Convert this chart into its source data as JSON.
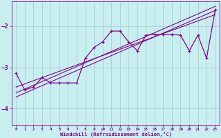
{
  "xlabel": "Windchill (Refroidissement éolien,°C)",
  "xlim": [
    -0.5,
    23.5
  ],
  "ylim": [
    -4.4,
    -1.4
  ],
  "yticks": [
    -4,
    -3,
    -2
  ],
  "xticks": [
    0,
    1,
    2,
    3,
    4,
    5,
    6,
    7,
    8,
    9,
    10,
    11,
    12,
    13,
    14,
    15,
    16,
    17,
    18,
    19,
    20,
    21,
    22,
    23
  ],
  "bg_color": "#c8eef0",
  "grid_color": "#9ecfcc",
  "line_color": "#880088",
  "line_width": 0.9,
  "marker": "+",
  "marker_size": 3.5,
  "scatter_x": [
    0,
    1,
    2,
    3,
    4,
    5,
    6,
    7,
    8,
    9,
    10,
    11,
    12,
    13,
    14,
    15,
    16,
    17,
    18,
    19,
    20,
    21,
    22,
    23
  ],
  "scatter_y": [
    -3.15,
    -3.55,
    -3.48,
    -3.25,
    -3.38,
    -3.38,
    -3.38,
    -3.38,
    -2.78,
    -2.52,
    -2.38,
    -2.12,
    -2.12,
    -2.38,
    -2.6,
    -2.22,
    -2.2,
    -2.2,
    -2.2,
    -2.22,
    -2.6,
    -2.22,
    -2.78,
    -1.6
  ],
  "reg_lines": [
    {
      "x0": 0,
      "y0": -3.48,
      "x1": 23,
      "y1": -1.72
    },
    {
      "x0": 0,
      "y0": -3.62,
      "x1": 23,
      "y1": -1.52
    },
    {
      "x0": 0,
      "y0": -3.72,
      "x1": 23,
      "y1": -1.62
    }
  ]
}
